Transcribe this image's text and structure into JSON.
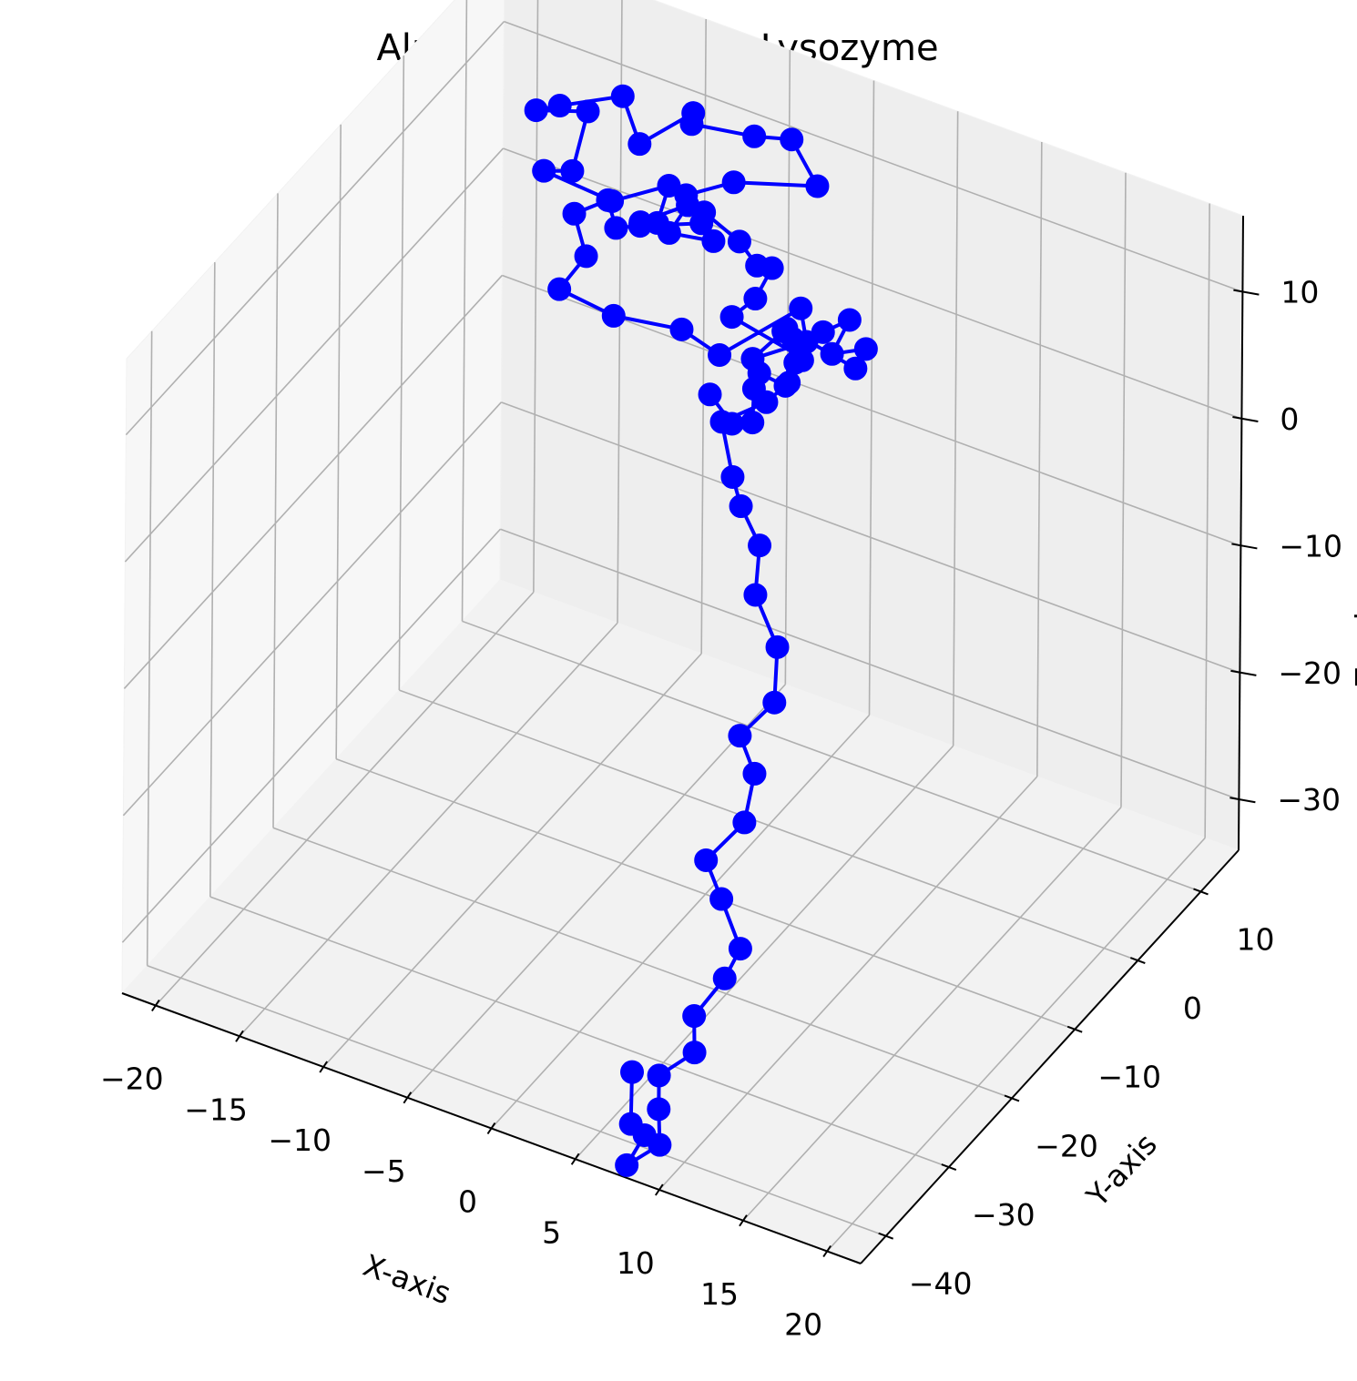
{
  "chart_data": {
    "type": "line",
    "variant": "3d-line-with-markers",
    "title": "AlphaFold Structure: Lysozyme",
    "xlabel": "X-axis",
    "ylabel": "Y-axis",
    "zlabel": "Z-axis",
    "xlim": [
      -22,
      22
    ],
    "ylim": [
      -44,
      16
    ],
    "zlim": [
      -34,
      16
    ],
    "x_ticks": [
      -20,
      -15,
      -10,
      -5,
      0,
      5,
      10,
      15,
      20
    ],
    "y_ticks": [
      -40,
      -30,
      -20,
      -10,
      0,
      10
    ],
    "z_ticks": [
      -30,
      -20,
      -10,
      0,
      10
    ],
    "x_tick_labels": [
      "−20",
      "−15",
      "−10",
      "−5",
      "0",
      "5",
      "10",
      "15",
      "20"
    ],
    "y_tick_labels": [
      "−40",
      "−30",
      "−20",
      "−10",
      "0",
      "10"
    ],
    "z_tick_labels": [
      "−30",
      "−20",
      "−10",
      "0",
      "10"
    ],
    "grid": true,
    "series": [
      {
        "color": "#0000ff",
        "marker": "circle",
        "points": [
          [
            3.8,
            -20.1,
            12.7
          ],
          [
            4.9,
            -19.5,
            10.6
          ],
          [
            5.3,
            -17.3,
            9.7
          ],
          [
            4.3,
            -14.4,
            10.3
          ],
          [
            3.9,
            -12.5,
            10.3
          ],
          [
            4.2,
            -9.1,
            7.6
          ],
          [
            3.7,
            -6.6,
            9.7
          ],
          [
            3.7,
            -5.1,
            7.2
          ],
          [
            2.1,
            -1.9,
            4.5
          ],
          [
            2.4,
            1.7,
            5.1
          ],
          [
            3.6,
            2.7,
            6.1
          ],
          [
            2.2,
            3.7,
            2.2
          ],
          [
            3.1,
            6.7,
            1.4
          ],
          [
            2.3,
            7.2,
            -0.8
          ],
          [
            -1.6,
            6.6,
            0.8
          ],
          [
            -1.0,
            4.5,
            2.0
          ],
          [
            -1.4,
            0.7,
            1.7
          ],
          [
            1.9,
            0.4,
            4.8
          ],
          [
            1.1,
            1.6,
            6.4
          ],
          [
            -1.7,
            -3.8,
            4.3
          ],
          [
            -5.0,
            -1.0,
            3.2
          ],
          [
            -8.9,
            -1.4,
            2.6
          ],
          [
            -12.1,
            -1.5,
            3.2
          ],
          [
            -10.3,
            -2.1,
            7.0
          ],
          [
            -12.1,
            0.8,
            7.9
          ],
          [
            -11.0,
            3.2,
            8.2
          ],
          [
            -9.5,
            0.5,
            8.2
          ],
          [
            -8.0,
            0.3,
            9.2
          ],
          [
            -4.8,
            1.5,
            10.3
          ],
          [
            -5.5,
            0.9,
            12.5
          ],
          [
            -3.9,
            4.2,
            12.5
          ],
          [
            0.4,
            6.0,
            13.3
          ],
          [
            -0.7,
            4.8,
            17.1
          ],
          [
            -2.7,
            4.2,
            16.7
          ],
          [
            -6.2,
            3.6,
            16.3
          ],
          [
            -7.3,
            6.8,
            14.9
          ],
          [
            -9.1,
            3.1,
            13.6
          ],
          [
            -9.9,
            2.5,
            17.3
          ],
          [
            -13.3,
            1.6,
            15.4
          ],
          [
            -15.3,
            3.2,
            13.2
          ],
          [
            -13.3,
            6.1,
            12.5
          ],
          [
            -12.9,
            2.6,
            9.9
          ],
          [
            -15.0,
            3.7,
            8.3
          ],
          [
            -11.9,
            6.3,
            6.0
          ],
          [
            -10.2,
            10.8,
            5.6
          ],
          [
            -11.1,
            11.4,
            1.9
          ],
          [
            -10.8,
            7.9,
            4.0
          ],
          [
            -8.0,
            7.9,
            6.7
          ],
          [
            -9.9,
            10.1,
            2.4
          ],
          [
            -7.9,
            11.8,
            1.8
          ],
          [
            -7.8,
            10.0,
            5.1
          ],
          [
            -5.8,
            10.3,
            3.6
          ],
          [
            -4.6,
            9.9,
            2.5
          ],
          [
            -4.6,
            12.3,
            1.0
          ],
          [
            -4.2,
            8.6,
            0.8
          ],
          [
            -4.4,
            5.4,
            1.0
          ],
          [
            -1.6,
            8.8,
            -2.6
          ],
          [
            -2.1,
            8.4,
            -4.7
          ],
          [
            -3.8,
            9.4,
            -7.6
          ],
          [
            -5.4,
            6.6,
            -8.4
          ],
          [
            -4.1,
            4.9,
            -11.2
          ],
          [
            -3.0,
            3.3,
            -12.1
          ],
          [
            -1.8,
            3.1,
            -14.5
          ],
          [
            -1.1,
            0.6,
            -16.7
          ],
          [
            1.6,
            -3.1,
            -17.5
          ],
          [
            2.6,
            -6.2,
            -19.7
          ],
          [
            1.9,
            -9.8,
            -20.7
          ],
          [
            3.9,
            -12.8,
            -21.1
          ],
          [
            4.1,
            -14.9,
            -23.7
          ],
          [
            2.8,
            -17.5,
            -25.9
          ],
          [
            4.4,
            -19.3,
            -27.2
          ],
          [
            6.4,
            -21.6,
            -28.9
          ],
          [
            6.3,
            -23.8,
            -30.1
          ],
          [
            5.8,
            -27.3,
            -31.4
          ],
          [
            7.1,
            -30.7,
            -31.8
          ],
          [
            6.3,
            -34.2,
            -32.1
          ],
          [
            7.3,
            -36.9,
            -32.8
          ],
          [
            8.6,
            -40.2,
            -33.2
          ],
          [
            7.8,
            -43.3,
            -33.5
          ],
          [
            8.4,
            -42.1,
            -31.5
          ],
          [
            8.1,
            -43.5,
            -30.0
          ],
          [
            8.3,
            -43.9,
            -25.6
          ]
        ]
      }
    ]
  }
}
